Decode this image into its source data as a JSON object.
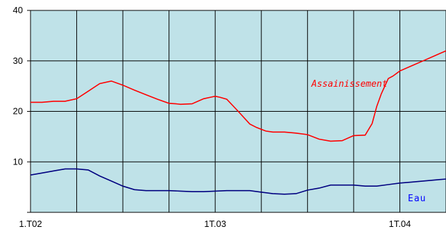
{
  "chart_data": {
    "type": "line",
    "ylim": [
      0,
      40
    ],
    "y_ticks": [
      "10",
      "20",
      "30",
      "40"
    ],
    "x_tick_labels": [
      {
        "label": "1.T02",
        "index": 0
      },
      {
        "label": "1T.03",
        "index": 4
      },
      {
        "label": "1T.04",
        "index": 8
      }
    ],
    "grid": true,
    "plot_background": "#bfe2e8",
    "series": [
      {
        "name": "Assainissement",
        "color": "#ff0000",
        "x": [
          0,
          0.25,
          0.5,
          0.75,
          1.0,
          1.25,
          1.5,
          1.75,
          2.0,
          2.25,
          2.5,
          2.75,
          3.0,
          3.15,
          3.25,
          3.5,
          3.75,
          3.9,
          4.0,
          4.1,
          4.25,
          4.5,
          4.75,
          4.9,
          5.1,
          5.25,
          5.5,
          5.75,
          6.0,
          6.25,
          6.5,
          6.75,
          7.0,
          7.25,
          7.4,
          7.5,
          7.6,
          7.75,
          7.85,
          8.0,
          8.25,
          8.5,
          8.75,
          9.0
        ],
        "values": [
          21.8,
          21.8,
          22.0,
          22.0,
          22.5,
          24.0,
          25.5,
          26.0,
          25.2,
          24.2,
          23.3,
          22.4,
          21.6,
          21.5,
          21.4,
          21.5,
          22.5,
          22.8,
          23.0,
          22.8,
          22.4,
          20.0,
          17.5,
          16.8,
          16.1,
          15.9,
          15.9,
          15.7,
          15.4,
          14.5,
          14.1,
          14.2,
          15.2,
          15.3,
          17.6,
          21.0,
          23.5,
          26.5,
          27,
          28,
          29,
          30,
          31,
          32
        ],
        "visible_count": 44
      },
      {
        "name": "Eau",
        "color": "#000080",
        "x": [
          0,
          0.25,
          0.5,
          0.75,
          1.0,
          1.25,
          1.5,
          1.75,
          2.0,
          2.25,
          2.5,
          2.75,
          3.0,
          3.25,
          3.5,
          3.75,
          4.0,
          4.25,
          4.5,
          4.75,
          5.0,
          5.25,
          5.5,
          5.75,
          6.0,
          6.25,
          6.5,
          6.75,
          7.0,
          7.25,
          7.5,
          7.75,
          8.0,
          8.25,
          8.5,
          8.75,
          9.0
        ],
        "values": [
          7.4,
          7.8,
          8.2,
          8.6,
          8.6,
          8.4,
          7.2,
          6.2,
          5.2,
          4.5,
          4.3,
          4.3,
          4.3,
          4.2,
          4.1,
          4.1,
          4.2,
          4.3,
          4.3,
          4.3,
          4.0,
          3.7,
          3.6,
          3.7,
          4.4,
          4.8,
          5.4,
          5.4,
          5.4,
          5.2,
          5.2,
          5.5,
          5.8,
          6.0,
          6.2,
          6.4,
          6.6
        ]
      }
    ],
    "series_labels": {
      "assainissement": "Assainissement",
      "eau": "Eau"
    }
  }
}
